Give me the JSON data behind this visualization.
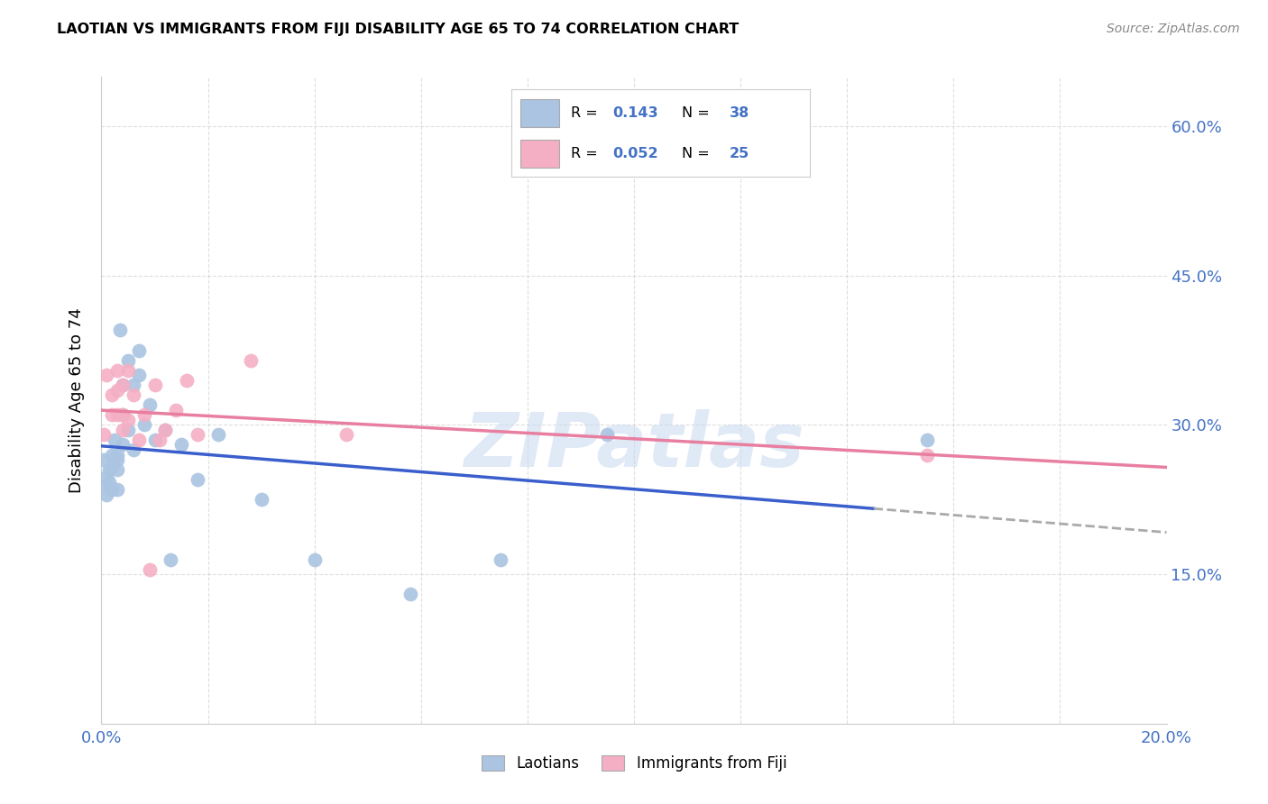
{
  "title": "LAOTIAN VS IMMIGRANTS FROM FIJI DISABILITY AGE 65 TO 74 CORRELATION CHART",
  "source": "Source: ZipAtlas.com",
  "ylabel": "Disability Age 65 to 74",
  "x_min": 0.0,
  "x_max": 0.2,
  "y_min": 0.0,
  "y_max": 0.65,
  "laotian_r": 0.143,
  "laotian_n": 38,
  "fiji_r": 0.052,
  "fiji_n": 25,
  "laotian_color": "#aac4e2",
  "fiji_color": "#f4afc4",
  "laotian_line_color": "#3a5fcd",
  "fiji_line_color": "#e87fa0",
  "legend_label_1": "Laotians",
  "legend_label_2": "Immigrants from Fiji",
  "laotian_x": [
    0.0005,
    0.001,
    0.001,
    0.001,
    0.0015,
    0.0015,
    0.002,
    0.002,
    0.002,
    0.0025,
    0.003,
    0.003,
    0.003,
    0.003,
    0.0035,
    0.004,
    0.004,
    0.004,
    0.005,
    0.005,
    0.006,
    0.006,
    0.007,
    0.007,
    0.008,
    0.009,
    0.01,
    0.012,
    0.013,
    0.015,
    0.018,
    0.022,
    0.03,
    0.04,
    0.058,
    0.075,
    0.095,
    0.155
  ],
  "laotian_y": [
    0.265,
    0.248,
    0.24,
    0.23,
    0.255,
    0.242,
    0.27,
    0.258,
    0.235,
    0.285,
    0.27,
    0.265,
    0.255,
    0.235,
    0.395,
    0.34,
    0.31,
    0.28,
    0.365,
    0.295,
    0.34,
    0.275,
    0.375,
    0.35,
    0.3,
    0.32,
    0.285,
    0.295,
    0.165,
    0.28,
    0.245,
    0.29,
    0.225,
    0.165,
    0.13,
    0.165,
    0.29,
    0.285
  ],
  "fiji_x": [
    0.0005,
    0.001,
    0.002,
    0.002,
    0.003,
    0.003,
    0.003,
    0.004,
    0.004,
    0.004,
    0.005,
    0.005,
    0.006,
    0.007,
    0.008,
    0.009,
    0.01,
    0.011,
    0.012,
    0.014,
    0.016,
    0.018,
    0.028,
    0.046,
    0.155
  ],
  "fiji_y": [
    0.29,
    0.35,
    0.33,
    0.31,
    0.355,
    0.335,
    0.31,
    0.34,
    0.31,
    0.295,
    0.355,
    0.305,
    0.33,
    0.285,
    0.31,
    0.155,
    0.34,
    0.285,
    0.295,
    0.315,
    0.345,
    0.29,
    0.365,
    0.29,
    0.27
  ],
  "watermark": "ZIPatlas",
  "background_color": "#ffffff",
  "grid_color": "#d0d0d0"
}
